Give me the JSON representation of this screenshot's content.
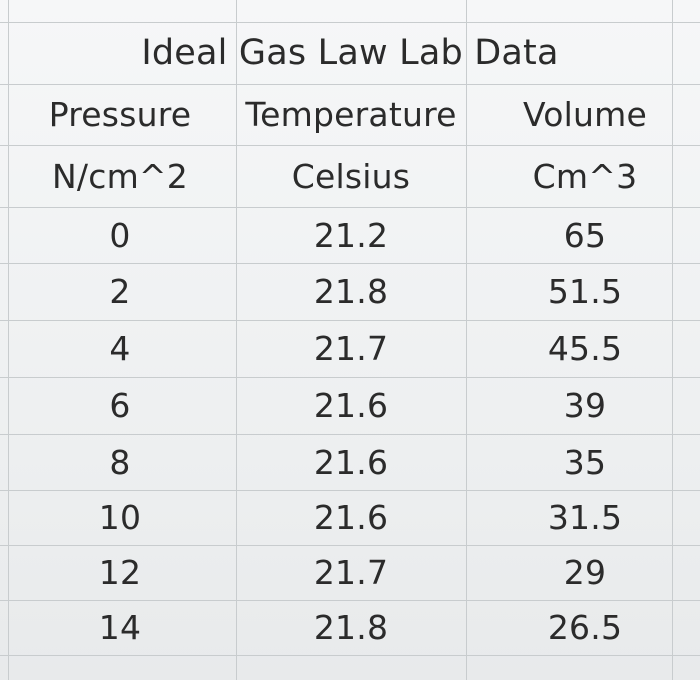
{
  "sheet": {
    "title": "Ideal Gas Law Lab Data",
    "headers": [
      "Pressure",
      "Temperature",
      "Volume"
    ],
    "units": [
      "N/cm^2",
      "Celsius",
      "Cm^3"
    ],
    "rows": [
      [
        "0",
        "21.2",
        "65"
      ],
      [
        "2",
        "21.8",
        "51.5"
      ],
      [
        "4",
        "21.7",
        "45.5"
      ],
      [
        "6",
        "21.6",
        "39"
      ],
      [
        "8",
        "21.6",
        "35"
      ],
      [
        "10",
        "21.6",
        "31.5"
      ],
      [
        "12",
        "21.7",
        "29"
      ],
      [
        "14",
        "21.8",
        "26.5"
      ]
    ]
  }
}
